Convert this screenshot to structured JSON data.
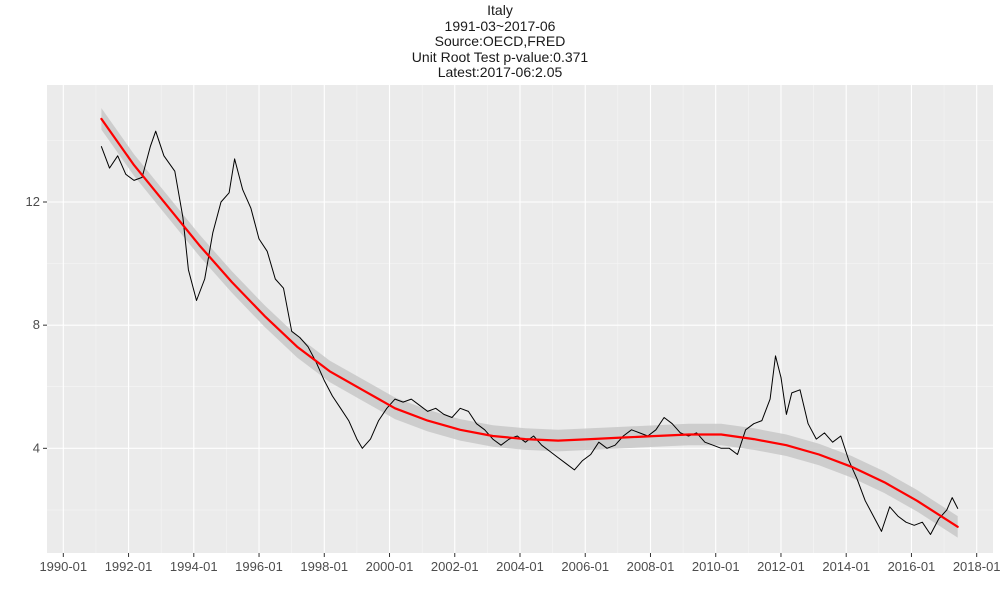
{
  "chart_data": {
    "type": "line",
    "title": "Italy",
    "subtitle_lines": [
      "1991-03~2017-06",
      "Source:OECD,FRED",
      "Unit Root Test p-value:0.371",
      "Latest:2017-06:2.05"
    ],
    "xlabel": "",
    "ylabel": "",
    "x_ticks": [
      "1990-01",
      "1992-01",
      "1994-01",
      "1996-01",
      "1998-01",
      "2000-01",
      "2002-01",
      "2004-01",
      "2006-01",
      "2008-01",
      "2010-01",
      "2012-01",
      "2014-01",
      "2016-01",
      "2018-01"
    ],
    "y_ticks": [
      4,
      8,
      12
    ],
    "xlim": [
      "1989-07",
      "2018-07"
    ],
    "ylim": [
      0.6,
      15.8
    ],
    "grid": true,
    "background": "#ebebeb",
    "series": [
      {
        "color": "#000000",
        "points": [
          [
            "1991-03",
            13.8
          ],
          [
            "1991-06",
            13.1
          ],
          [
            "1991-09",
            13.5
          ],
          [
            "1991-12",
            12.9
          ],
          [
            "1992-03",
            12.7
          ],
          [
            "1992-06",
            12.8
          ],
          [
            "1992-09",
            13.8
          ],
          [
            "1992-11",
            14.3
          ],
          [
            "1993-02",
            13.5
          ],
          [
            "1993-06",
            13.0
          ],
          [
            "1993-09",
            11.5
          ],
          [
            "1993-11",
            9.8
          ],
          [
            "1994-02",
            8.8
          ],
          [
            "1994-05",
            9.5
          ],
          [
            "1994-08",
            11.0
          ],
          [
            "1994-11",
            12.0
          ],
          [
            "1995-02",
            12.3
          ],
          [
            "1995-04",
            13.4
          ],
          [
            "1995-07",
            12.4
          ],
          [
            "1995-10",
            11.8
          ],
          [
            "1996-01",
            10.8
          ],
          [
            "1996-04",
            10.4
          ],
          [
            "1996-07",
            9.5
          ],
          [
            "1996-10",
            9.2
          ],
          [
            "1997-01",
            7.8
          ],
          [
            "1997-04",
            7.6
          ],
          [
            "1997-07",
            7.3
          ],
          [
            "1997-10",
            6.8
          ],
          [
            "1998-01",
            6.2
          ],
          [
            "1998-04",
            5.7
          ],
          [
            "1998-07",
            5.3
          ],
          [
            "1998-10",
            4.9
          ],
          [
            "1999-01",
            4.3
          ],
          [
            "1999-03",
            4.0
          ],
          [
            "1999-06",
            4.3
          ],
          [
            "1999-09",
            4.9
          ],
          [
            "1999-12",
            5.3
          ],
          [
            "2000-03",
            5.6
          ],
          [
            "2000-06",
            5.5
          ],
          [
            "2000-09",
            5.6
          ],
          [
            "2000-12",
            5.4
          ],
          [
            "2001-03",
            5.2
          ],
          [
            "2001-06",
            5.3
          ],
          [
            "2001-09",
            5.1
          ],
          [
            "2001-12",
            5.0
          ],
          [
            "2002-03",
            5.3
          ],
          [
            "2002-06",
            5.2
          ],
          [
            "2002-09",
            4.8
          ],
          [
            "2002-12",
            4.6
          ],
          [
            "2003-03",
            4.3
          ],
          [
            "2003-06",
            4.1
          ],
          [
            "2003-09",
            4.3
          ],
          [
            "2003-12",
            4.4
          ],
          [
            "2004-03",
            4.2
          ],
          [
            "2004-06",
            4.4
          ],
          [
            "2004-09",
            4.1
          ],
          [
            "2004-12",
            3.9
          ],
          [
            "2005-03",
            3.7
          ],
          [
            "2005-06",
            3.5
          ],
          [
            "2005-09",
            3.3
          ],
          [
            "2005-12",
            3.6
          ],
          [
            "2006-03",
            3.8
          ],
          [
            "2006-06",
            4.2
          ],
          [
            "2006-09",
            4.0
          ],
          [
            "2006-12",
            4.1
          ],
          [
            "2007-03",
            4.4
          ],
          [
            "2007-06",
            4.6
          ],
          [
            "2007-09",
            4.5
          ],
          [
            "2007-12",
            4.4
          ],
          [
            "2008-03",
            4.6
          ],
          [
            "2008-06",
            5.0
          ],
          [
            "2008-09",
            4.8
          ],
          [
            "2008-12",
            4.5
          ],
          [
            "2009-03",
            4.4
          ],
          [
            "2009-06",
            4.5
          ],
          [
            "2009-09",
            4.2
          ],
          [
            "2009-12",
            4.1
          ],
          [
            "2010-03",
            4.0
          ],
          [
            "2010-06",
            4.0
          ],
          [
            "2010-09",
            3.8
          ],
          [
            "2010-12",
            4.6
          ],
          [
            "2011-03",
            4.8
          ],
          [
            "2011-06",
            4.9
          ],
          [
            "2011-09",
            5.6
          ],
          [
            "2011-11",
            7.0
          ],
          [
            "2012-01",
            6.3
          ],
          [
            "2012-03",
            5.1
          ],
          [
            "2012-05",
            5.8
          ],
          [
            "2012-08",
            5.9
          ],
          [
            "2012-11",
            4.8
          ],
          [
            "2013-02",
            4.3
          ],
          [
            "2013-05",
            4.5
          ],
          [
            "2013-08",
            4.2
          ],
          [
            "2013-11",
            4.4
          ],
          [
            "2014-02",
            3.6
          ],
          [
            "2014-05",
            3.0
          ],
          [
            "2014-08",
            2.3
          ],
          [
            "2014-11",
            1.8
          ],
          [
            "2015-02",
            1.3
          ],
          [
            "2015-05",
            2.1
          ],
          [
            "2015-08",
            1.8
          ],
          [
            "2015-11",
            1.6
          ],
          [
            "2016-02",
            1.5
          ],
          [
            "2016-05",
            1.6
          ],
          [
            "2016-08",
            1.2
          ],
          [
            "2016-11",
            1.7
          ],
          [
            "2017-02",
            2.0
          ],
          [
            "2017-04",
            2.4
          ],
          [
            "2017-06",
            2.05
          ]
        ]
      },
      {
        "color": "#ff0000",
        "smoothed": true,
        "points": [
          [
            "1991-03",
            14.7
          ],
          [
            "1992-03",
            13.2
          ],
          [
            "1993-03",
            11.9
          ],
          [
            "1994-03",
            10.6
          ],
          [
            "1995-03",
            9.4
          ],
          [
            "1996-03",
            8.3
          ],
          [
            "1997-03",
            7.3
          ],
          [
            "1998-03",
            6.5
          ],
          [
            "1999-03",
            5.9
          ],
          [
            "2000-03",
            5.3
          ],
          [
            "2001-03",
            4.9
          ],
          [
            "2002-03",
            4.6
          ],
          [
            "2003-03",
            4.4
          ],
          [
            "2004-03",
            4.3
          ],
          [
            "2005-03",
            4.25
          ],
          [
            "2006-03",
            4.3
          ],
          [
            "2007-03",
            4.35
          ],
          [
            "2008-03",
            4.4
          ],
          [
            "2009-03",
            4.45
          ],
          [
            "2010-03",
            4.45
          ],
          [
            "2011-03",
            4.3
          ],
          [
            "2012-03",
            4.1
          ],
          [
            "2013-03",
            3.8
          ],
          [
            "2014-03",
            3.4
          ],
          [
            "2015-03",
            2.9
          ],
          [
            "2016-03",
            2.3
          ],
          [
            "2017-06",
            1.45
          ]
        ],
        "ribbon_color": "#c8c8c8",
        "ribbon_half_width": 0.35
      }
    ]
  }
}
